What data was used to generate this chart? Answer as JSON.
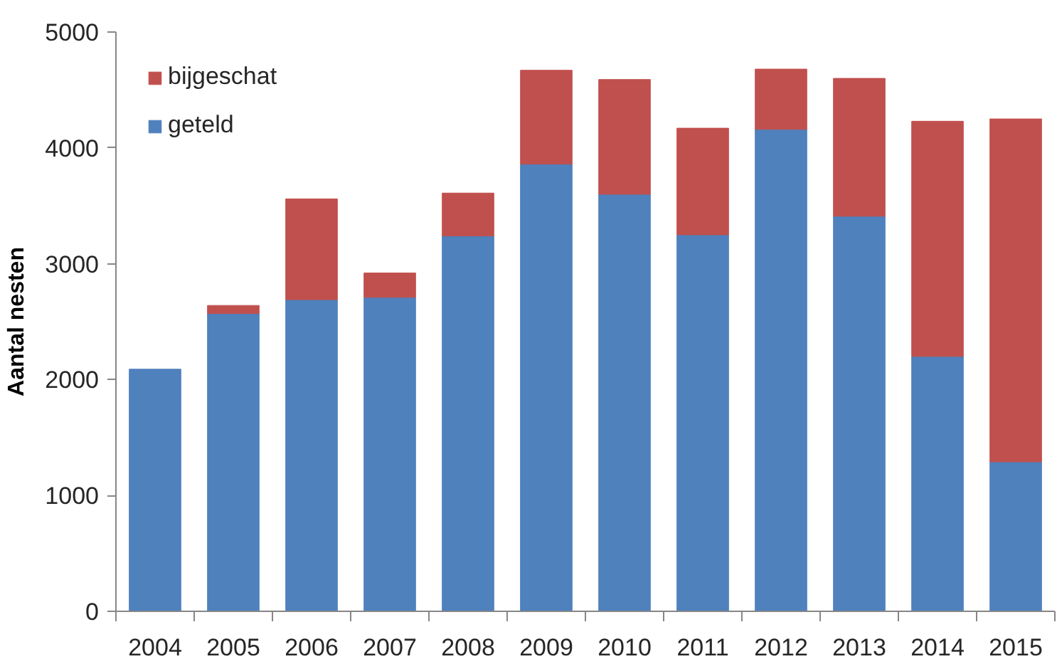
{
  "chart_data": {
    "type": "bar",
    "stacked": true,
    "ylabel": "Aantal nesten",
    "categories": [
      "2004",
      "2005",
      "2006",
      "2007",
      "2008",
      "2009",
      "2010",
      "2011",
      "2012",
      "2013",
      "2014",
      "2015"
    ],
    "series": [
      {
        "name": "geteld",
        "color": "#4f81bd",
        "values": [
          2090,
          2570,
          2690,
          2710,
          3240,
          3860,
          3600,
          3250,
          4160,
          3410,
          2200,
          1290
        ]
      },
      {
        "name": "bijgeschat",
        "color": "#c0504d",
        "values": [
          null,
          70,
          870,
          210,
          370,
          810,
          990,
          920,
          520,
          1190,
          2030,
          2960
        ]
      }
    ],
    "ylim": [
      0,
      5000
    ],
    "yticks": [
      0,
      1000,
      2000,
      3000,
      4000,
      5000
    ],
    "grid": false,
    "legend": "top left"
  }
}
